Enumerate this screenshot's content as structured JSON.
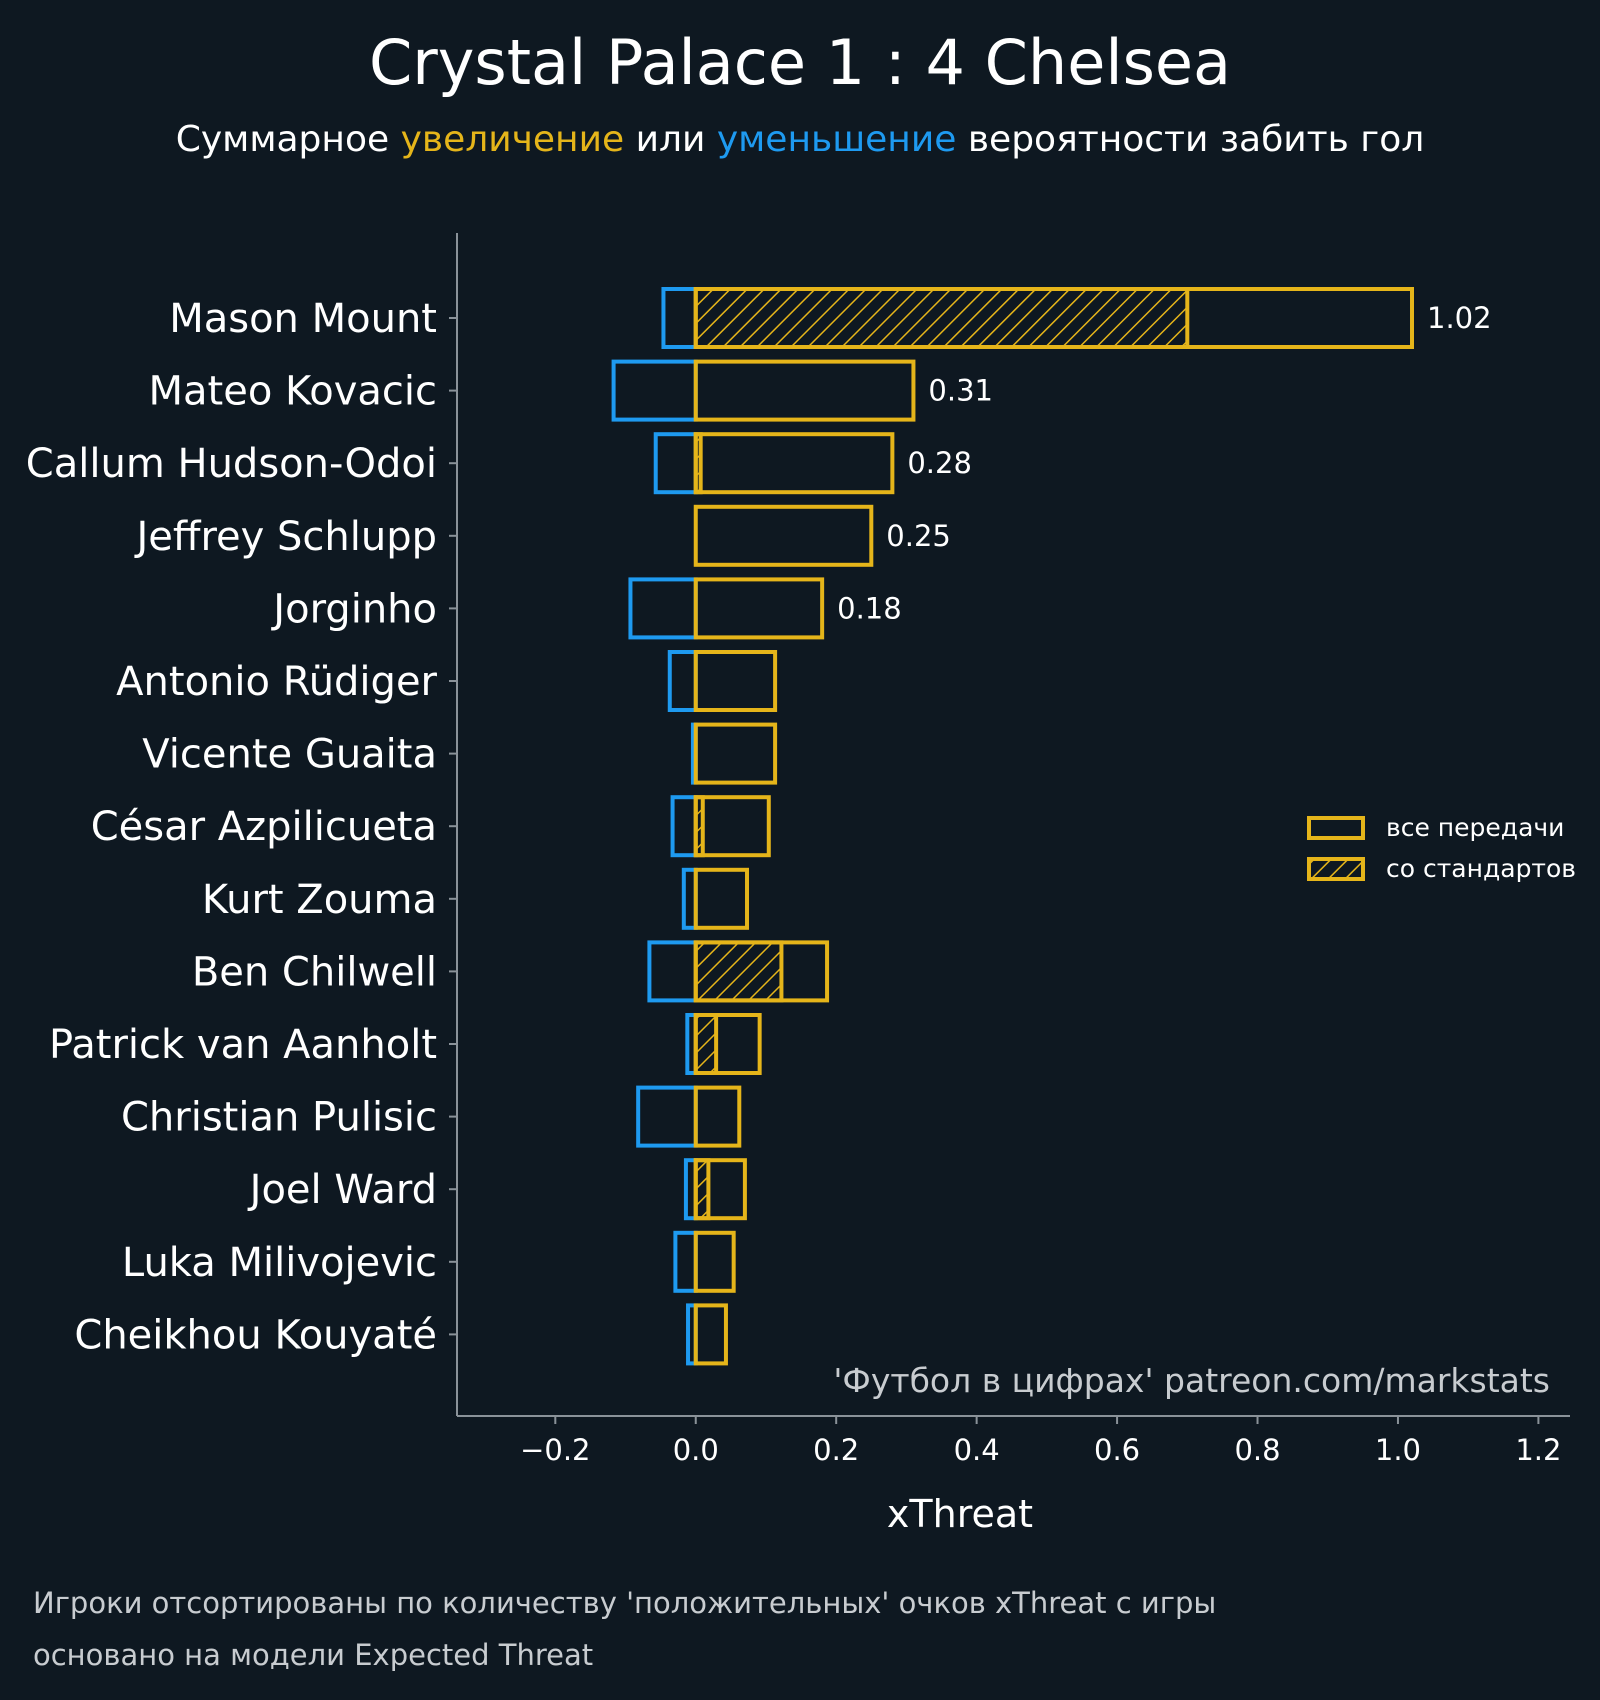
{
  "chart_data": {
    "type": "bar",
    "orientation": "horizontal",
    "title": "Crystal Palace 1 : 4 Chelsea",
    "subtitle": {
      "parts": [
        "Суммарное ",
        "увеличение",
        " или ",
        "уменьшение",
        " вероятности забить гол"
      ]
    },
    "xlabel": "xThreat",
    "ylabel": "",
    "xlim": [
      -0.34,
      1.245
    ],
    "xticks": [
      -0.2,
      0.0,
      0.2,
      0.4,
      0.6,
      0.8,
      1.0,
      1.2
    ],
    "xtick_labels": [
      "−0.2",
      "0.0",
      "0.2",
      "0.4",
      "0.6",
      "0.8",
      "1.0",
      "1.2"
    ],
    "grid": false,
    "categories": [
      "Mason Mount",
      "Mateo Kovacic",
      "Callum Hudson-Odoi",
      "Jeffrey Schlupp",
      "Jorginho",
      "Antonio Rüdiger",
      "Vicente Guaita",
      "César Azpilicueta",
      "Kurt Zouma",
      "Ben Chilwell",
      "Patrick van Aanholt",
      "Christian Pulisic",
      "Joel Ward",
      "Luka Milivojevic",
      "Cheikhou Kouyaté"
    ],
    "series": [
      {
        "name": "все передачи",
        "role": "positive",
        "values": [
          1.02,
          0.31,
          0.28,
          0.25,
          0.18,
          0.113,
          0.113,
          0.104,
          0.073,
          0.187,
          0.091,
          0.062,
          0.07,
          0.054,
          0.043
        ]
      },
      {
        "name": "все передачи",
        "role": "negative",
        "values": [
          -0.046,
          -0.117,
          -0.057,
          0.0,
          -0.093,
          -0.037,
          -0.004,
          -0.033,
          -0.017,
          -0.066,
          -0.012,
          -0.082,
          -0.014,
          -0.029,
          -0.011
        ]
      },
      {
        "name": "со стандартов",
        "role": "set-piece positive",
        "values": [
          0.7,
          0.0,
          0.007,
          0.0,
          0.0,
          0.0,
          0.0,
          0.01,
          0.0,
          0.122,
          0.029,
          0.0,
          0.018,
          0.0,
          0.0
        ]
      }
    ],
    "data_labels": [
      "1.02",
      "0.31",
      "0.28",
      "0.25",
      "0.18",
      "",
      "",
      "",
      "",
      "",
      "",
      "",
      "",
      "",
      ""
    ],
    "legend": {
      "placement": "right",
      "entries": [
        "все передачи",
        "со стандартов"
      ]
    },
    "watermark": "'Футбол в цифрах' patreon.com/markstats",
    "footnotes": [
      "Игроки отсортированы по количеству 'положительных' очков xThreat с игры",
      "основано на модели Expected Threat"
    ]
  },
  "colors": {
    "background": "#0e1821",
    "positive": "#e5b51a",
    "negative": "#1e9af0",
    "text": "#ffffff",
    "axis": "#8a9299"
  }
}
